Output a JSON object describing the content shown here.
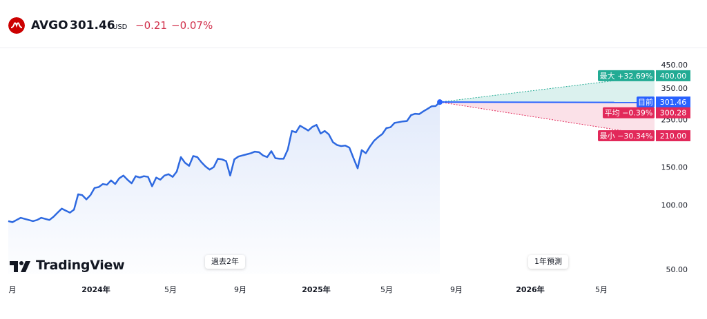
{
  "header": {
    "ticker": "AVGO",
    "price": "301.46",
    "currency": "USD",
    "change": "−0.21",
    "change_pct": "−0.07%",
    "logo_color": "#cc0000"
  },
  "watermark": {
    "text": "TradingView",
    "icon": "tradingview-logo-icon"
  },
  "pills": {
    "past": "過去2年",
    "forecast": "1年預測"
  },
  "colors": {
    "line": "#2e69e0",
    "max": "#22ab94",
    "min": "#e2295a",
    "avg": "#e2295a",
    "current": "#2962ff"
  },
  "chart_data": {
    "type": "line",
    "y_ticks": [
      "450.00",
      "350.00",
      "250.00",
      "150.00",
      "100.00",
      "50.00"
    ],
    "x_ticks": [
      "月",
      "2024年",
      "5月",
      "9月",
      "2025年",
      "5月",
      "9月",
      "2026年",
      "5月"
    ],
    "price_history": [
      84,
      83,
      85,
      87,
      86,
      85,
      84,
      85,
      87,
      86,
      85,
      88,
      92,
      96,
      94,
      92,
      95,
      112,
      111,
      106,
      111,
      120,
      121,
      125,
      124,
      130,
      125,
      133,
      137,
      131,
      126,
      136,
      134,
      136,
      135,
      122,
      134,
      131,
      137,
      139,
      135,
      143,
      167,
      157,
      152,
      169,
      167,
      158,
      151,
      146,
      150,
      164,
      163,
      160,
      137,
      163,
      168,
      170,
      172,
      174,
      177,
      176,
      170,
      167,
      178,
      165,
      164,
      164,
      181,
      221,
      218,
      234,
      228,
      222,
      231,
      236,
      215,
      221,
      213,
      196,
      190,
      188,
      189,
      185,
      165,
      148,
      180,
      174,
      187,
      199,
      207,
      214,
      228,
      230,
      241,
      243,
      245,
      246,
      262,
      266,
      265,
      273,
      280,
      288,
      289,
      301.46
    ],
    "current": {
      "label": "目前",
      "value": "301.46",
      "v": 301.46
    },
    "forecast_max": {
      "label": "最大 +32.69%",
      "value": "400.00",
      "v": 400
    },
    "forecast_avg": {
      "label": "平均 −0.39%",
      "value": "300.28",
      "v": 300.28
    },
    "forecast_min": {
      "label": "最小 −30.34%",
      "value": "210.00",
      "v": 210
    },
    "log_scale": true,
    "grid": false
  }
}
